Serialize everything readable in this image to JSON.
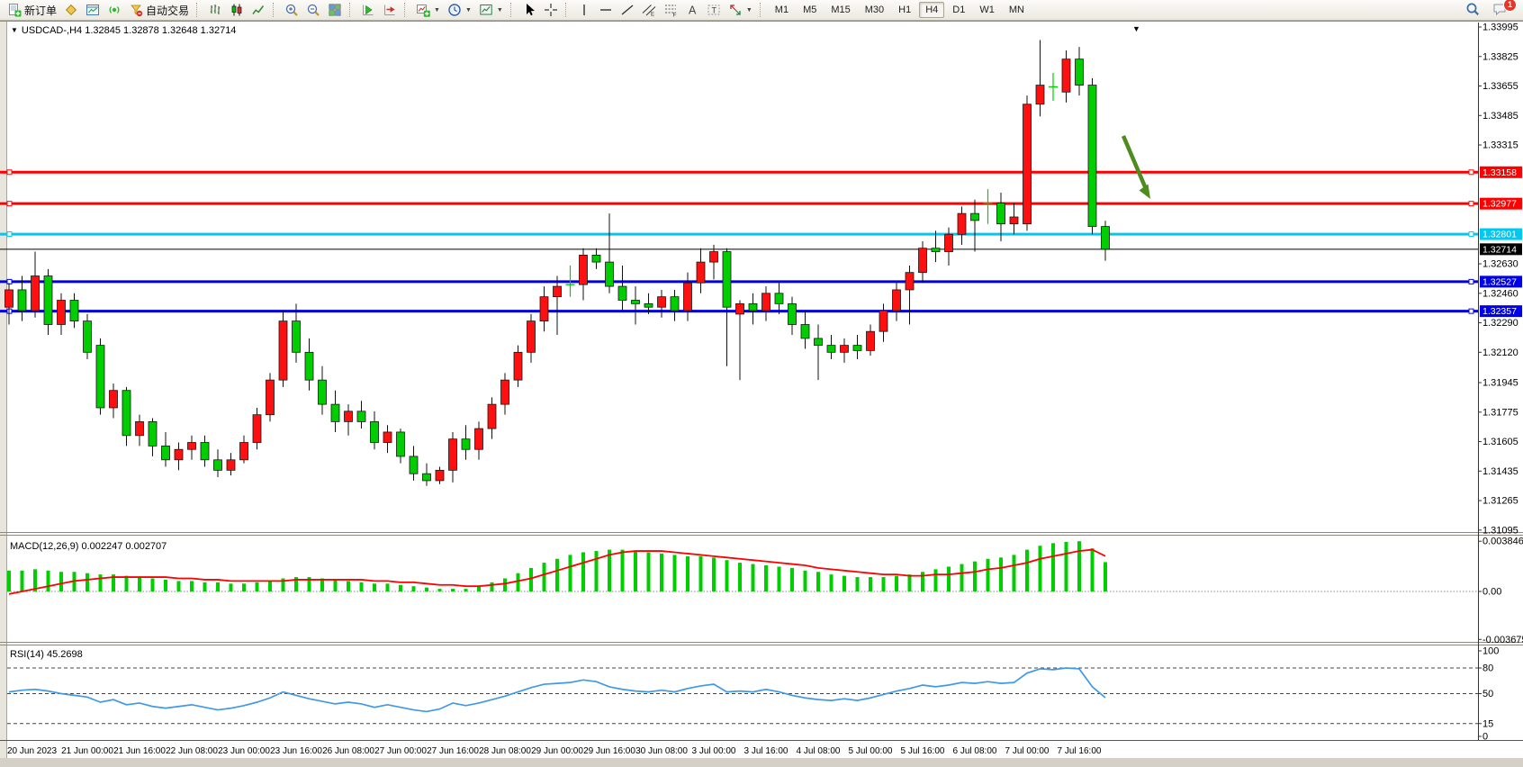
{
  "toolbar": {
    "groups": [
      [
        {
          "name": "new-order",
          "icon": "new-order-icon",
          "label": "新订单"
        },
        {
          "name": "favorites",
          "icon": "favorites-icon"
        },
        {
          "name": "data-window",
          "icon": "data-window-icon"
        },
        {
          "name": "signals",
          "icon": "signals-icon"
        },
        {
          "name": "auto-trading",
          "icon": "auto-trading-icon",
          "label": "自动交易"
        }
      ],
      [
        {
          "name": "bar-chart",
          "icon": "bar-chart-icon"
        },
        {
          "name": "candlestick-chart",
          "icon": "candlestick-icon"
        },
        {
          "name": "line-chart",
          "icon": "line-chart-icon"
        }
      ],
      [
        {
          "name": "zoom-in",
          "icon": "zoom-in-icon"
        },
        {
          "name": "zoom-out",
          "icon": "zoom-out-icon"
        },
        {
          "name": "tile-windows",
          "icon": "tile-windows-icon"
        }
      ],
      [
        {
          "name": "auto-scroll",
          "icon": "auto-scroll-icon"
        },
        {
          "name": "chart-shift",
          "icon": "chart-shift-icon"
        }
      ],
      [
        {
          "name": "indicators",
          "icon": "indicators-icon",
          "dropdown": true
        },
        {
          "name": "periods",
          "icon": "periods-icon",
          "dropdown": true
        },
        {
          "name": "templates",
          "icon": "templates-icon",
          "dropdown": true
        }
      ],
      [
        {
          "name": "cursor",
          "icon": "cursor-icon"
        },
        {
          "name": "crosshair",
          "icon": "crosshair-icon"
        }
      ],
      [
        {
          "name": "vertical-line",
          "icon": "vertical-line-icon"
        },
        {
          "name": "horizontal-line",
          "icon": "horizontal-line-icon"
        },
        {
          "name": "trendline",
          "icon": "trendline-icon"
        },
        {
          "name": "equidistant-channel",
          "icon": "channel-icon"
        },
        {
          "name": "fibonacci",
          "icon": "fibonacci-icon"
        },
        {
          "name": "text",
          "icon": "text-icon"
        },
        {
          "name": "text-label",
          "icon": "label-icon"
        },
        {
          "name": "arrows",
          "icon": "arrows-icon",
          "dropdown": true
        }
      ]
    ],
    "timeframes": {
      "items": [
        "M1",
        "M5",
        "M15",
        "M30",
        "H1",
        "H4",
        "D1",
        "W1",
        "MN"
      ],
      "active": "H4"
    },
    "right": [
      {
        "name": "search",
        "icon": "search-icon"
      },
      {
        "name": "notifications",
        "icon": "chat-icon",
        "badge": "1"
      }
    ]
  },
  "chart": {
    "title_text": "USDCAD-,H4 1.32845 1.32878 1.32648 1.32714",
    "symbol": "USDCAD-",
    "period": "H4",
    "ohlc_current": {
      "open": "1.32845",
      "high": "1.32878",
      "low": "1.32648",
      "close": "1.32714"
    },
    "bid_line": {
      "price": 1.32714,
      "label": "1.32714",
      "color": "#000000"
    },
    "price_lines": [
      {
        "price": 1.33158,
        "label": "1.33158",
        "color": "#fe0000",
        "width": 3
      },
      {
        "price": 1.32977,
        "label": "1.32977",
        "color": "#fe0000",
        "width": 3
      },
      {
        "price": 1.32801,
        "label": "1.32801",
        "color": "#00c8f0",
        "width": 3
      },
      {
        "price": 1.32527,
        "label": "1.32527",
        "color": "#0000e8",
        "width": 3
      },
      {
        "price": 1.32357,
        "label": "1.32357",
        "color": "#0000e8",
        "width": 3
      }
    ],
    "price_axis_ticks": [
      "1.33995",
      "1.33825",
      "1.33655",
      "1.33485",
      "1.33315",
      "1.32630",
      "1.32460",
      "1.32290",
      "1.32120",
      "1.31945",
      "1.31775",
      "1.31605",
      "1.31435",
      "1.31265",
      "1.31095"
    ],
    "time_axis_labels": [
      {
        "text": "20 Jun 2023",
        "i": 0
      },
      {
        "text": "21 Jun 00:00",
        "i": 6
      },
      {
        "text": "21 Jun 16:00",
        "i": 10
      },
      {
        "text": "22 Jun 08:00",
        "i": 14
      },
      {
        "text": "23 Jun 00:00",
        "i": 18
      },
      {
        "text": "23 Jun 16:00",
        "i": 22
      },
      {
        "text": "26 Jun 08:00",
        "i": 26
      },
      {
        "text": "27 Jun 00:00",
        "i": 30
      },
      {
        "text": "27 Jun 16:00",
        "i": 34
      },
      {
        "text": "28 Jun 08:00",
        "i": 38
      },
      {
        "text": "29 Jun 00:00",
        "i": 42
      },
      {
        "text": "29 Jun 16:00",
        "i": 46
      },
      {
        "text": "30 Jun 08:00",
        "i": 50
      },
      {
        "text": "3 Jul 00:00",
        "i": 54
      },
      {
        "text": "3 Jul 16:00",
        "i": 58
      },
      {
        "text": "4 Jul 08:00",
        "i": 62
      },
      {
        "text": "5 Jul 00:00",
        "i": 66
      },
      {
        "text": "5 Jul 16:00",
        "i": 70
      },
      {
        "text": "6 Jul 08:00",
        "i": 74
      },
      {
        "text": "7 Jul 00:00",
        "i": 78
      },
      {
        "text": "7 Jul 16:00",
        "i": 82
      }
    ],
    "arrow_annotation": {
      "from": [
        1248,
        128
      ],
      "to": [
        1278,
        198
      ],
      "color": "#4e8c1f"
    },
    "colors": {
      "up": "#fe1010",
      "down": "#00ce00",
      "wick": "#111111",
      "doji": "#00ce00"
    }
  },
  "chart_data": [
    {
      "type": "candlestick",
      "title": "USDCAD-,H4",
      "up_color": "#fe1010",
      "down_color": "#00ce00",
      "ylim": [
        1.31095,
        1.33995
      ],
      "ohlc": [
        [
          1.3238,
          1.3252,
          1.3228,
          1.3248
        ],
        [
          1.3248,
          1.3256,
          1.323,
          1.3236
        ],
        [
          1.3236,
          1.327,
          1.3232,
          1.3256
        ],
        [
          1.3256,
          1.326,
          1.3222,
          1.3228
        ],
        [
          1.3228,
          1.3246,
          1.3222,
          1.3242
        ],
        [
          1.3242,
          1.3246,
          1.3226,
          1.323
        ],
        [
          1.323,
          1.3234,
          1.3208,
          1.3212
        ],
        [
          1.3216,
          1.322,
          1.3176,
          1.318
        ],
        [
          1.318,
          1.3194,
          1.3174,
          1.319
        ],
        [
          1.319,
          1.3192,
          1.3158,
          1.3164
        ],
        [
          1.3164,
          1.3176,
          1.3158,
          1.3172
        ],
        [
          1.3172,
          1.3174,
          1.3152,
          1.3158
        ],
        [
          1.3158,
          1.3166,
          1.3146,
          1.315
        ],
        [
          1.315,
          1.316,
          1.3144,
          1.3156
        ],
        [
          1.3156,
          1.3164,
          1.315,
          1.316
        ],
        [
          1.316,
          1.3164,
          1.3146,
          1.315
        ],
        [
          1.315,
          1.3156,
          1.314,
          1.3144
        ],
        [
          1.3144,
          1.3154,
          1.3141,
          1.315
        ],
        [
          1.315,
          1.3164,
          1.3148,
          1.316
        ],
        [
          1.316,
          1.318,
          1.3156,
          1.3176
        ],
        [
          1.3176,
          1.32,
          1.3172,
          1.3196
        ],
        [
          1.3196,
          1.3236,
          1.3192,
          1.323
        ],
        [
          1.323,
          1.324,
          1.3206,
          1.3212
        ],
        [
          1.3212,
          1.322,
          1.319,
          1.3196
        ],
        [
          1.3196,
          1.3204,
          1.3176,
          1.3182
        ],
        [
          1.3182,
          1.319,
          1.3166,
          1.3172
        ],
        [
          1.3172,
          1.3182,
          1.3164,
          1.3178
        ],
        [
          1.3178,
          1.3184,
          1.3168,
          1.3172
        ],
        [
          1.3172,
          1.3178,
          1.3156,
          1.316
        ],
        [
          1.316,
          1.317,
          1.3154,
          1.3166
        ],
        [
          1.3166,
          1.3168,
          1.3148,
          1.3152
        ],
        [
          1.3152,
          1.3158,
          1.3138,
          1.3142
        ],
        [
          1.3142,
          1.3148,
          1.3135,
          1.3138
        ],
        [
          1.3138,
          1.3146,
          1.3136,
          1.3144
        ],
        [
          1.3144,
          1.3166,
          1.3137,
          1.3162
        ],
        [
          1.3162,
          1.317,
          1.315,
          1.3156
        ],
        [
          1.3156,
          1.3172,
          1.315,
          1.3168
        ],
        [
          1.3168,
          1.3186,
          1.3162,
          1.3182
        ],
        [
          1.3182,
          1.32,
          1.3176,
          1.3196
        ],
        [
          1.3196,
          1.3216,
          1.3192,
          1.3212
        ],
        [
          1.3212,
          1.3234,
          1.3206,
          1.323
        ],
        [
          1.323,
          1.325,
          1.3224,
          1.3244
        ],
        [
          1.3244,
          1.3256,
          1.3222,
          1.325
        ],
        [
          1.325,
          1.3262,
          1.3244,
          1.3251
        ],
        [
          1.3251,
          1.3272,
          1.3242,
          1.3268
        ],
        [
          1.3268,
          1.3272,
          1.326,
          1.3264
        ],
        [
          1.3264,
          1.3292,
          1.3246,
          1.325
        ],
        [
          1.325,
          1.3262,
          1.3236,
          1.3242
        ],
        [
          1.3242,
          1.325,
          1.3228,
          1.324
        ],
        [
          1.324,
          1.3246,
          1.3234,
          1.3238
        ],
        [
          1.3238,
          1.3248,
          1.3232,
          1.3244
        ],
        [
          1.3244,
          1.3248,
          1.323,
          1.3236
        ],
        [
          1.3236,
          1.3258,
          1.323,
          1.3252
        ],
        [
          1.3252,
          1.3272,
          1.3246,
          1.3264
        ],
        [
          1.3264,
          1.3274,
          1.3254,
          1.327
        ],
        [
          1.327,
          1.3272,
          1.3204,
          1.3238
        ],
        [
          1.3234,
          1.3242,
          1.3196,
          1.324
        ],
        [
          1.324,
          1.3246,
          1.3228,
          1.3236
        ],
        [
          1.3236,
          1.325,
          1.323,
          1.3246
        ],
        [
          1.3246,
          1.3252,
          1.3234,
          1.324
        ],
        [
          1.324,
          1.3244,
          1.3222,
          1.3228
        ],
        [
          1.3228,
          1.3236,
          1.3214,
          1.322
        ],
        [
          1.322,
          1.3228,
          1.3196,
          1.3216
        ],
        [
          1.3216,
          1.3222,
          1.3208,
          1.3212
        ],
        [
          1.3212,
          1.322,
          1.3206,
          1.3216
        ],
        [
          1.3216,
          1.3222,
          1.3208,
          1.3213
        ],
        [
          1.3213,
          1.3228,
          1.321,
          1.3224
        ],
        [
          1.3224,
          1.324,
          1.3218,
          1.3236
        ],
        [
          1.3236,
          1.3252,
          1.323,
          1.3248
        ],
        [
          1.3248,
          1.3262,
          1.3228,
          1.3258
        ],
        [
          1.3258,
          1.3276,
          1.3252,
          1.3272
        ],
        [
          1.3272,
          1.3282,
          1.3264,
          1.327
        ],
        [
          1.327,
          1.3284,
          1.3262,
          1.328
        ],
        [
          1.328,
          1.3296,
          1.3274,
          1.3292
        ],
        [
          1.3292,
          1.33,
          1.327,
          1.3288
        ],
        [
          1.3297,
          1.3306,
          1.3286,
          1.3298
        ],
        [
          1.3298,
          1.3304,
          1.3276,
          1.3286
        ],
        [
          1.3286,
          1.3298,
          1.328,
          1.329
        ],
        [
          1.3286,
          1.336,
          1.3282,
          1.3355
        ],
        [
          1.3355,
          1.3392,
          1.3348,
          1.3366
        ],
        [
          1.3366,
          1.3373,
          1.3357,
          1.3365
        ],
        [
          1.3362,
          1.3386,
          1.3356,
          1.3381
        ],
        [
          1.3381,
          1.3388,
          1.336,
          1.3366
        ],
        [
          1.3366,
          1.337,
          1.328,
          1.32845
        ],
        [
          1.32845,
          1.32878,
          1.32648,
          1.32714
        ]
      ]
    },
    {
      "type": "bar",
      "title": "MACD(12,26,9) histogram",
      "color": "#00ce00",
      "ylim": [
        -0.0042,
        0.0042
      ],
      "axis_ticks": [
        "0.003846",
        "0.00",
        "-0.003675"
      ],
      "axis_values": [
        0.003846,
        0,
        -0.003675
      ],
      "current_main": "0.002247",
      "current_signal": "0.002707",
      "values": [
        0.0016,
        0.0016,
        0.0017,
        0.0016,
        0.0015,
        0.0015,
        0.0014,
        0.0013,
        0.0013,
        0.0012,
        0.0011,
        0.001,
        0.0009,
        0.0008,
        0.0008,
        0.0007,
        0.0007,
        0.0006,
        0.0006,
        0.0007,
        0.0008,
        0.001,
        0.0011,
        0.0011,
        0.001,
        0.0009,
        0.0008,
        0.0007,
        0.0006,
        0.0006,
        0.0005,
        0.0004,
        0.0003,
        0.0002,
        0.0002,
        0.0002,
        0.0004,
        0.0007,
        0.001,
        0.0014,
        0.0018,
        0.0022,
        0.0025,
        0.0028,
        0.003,
        0.0031,
        0.0032,
        0.0032,
        0.0031,
        0.003,
        0.0029,
        0.0028,
        0.0027,
        0.0027,
        0.0026,
        0.0024,
        0.0022,
        0.0021,
        0.002,
        0.0019,
        0.0018,
        0.0016,
        0.0015,
        0.0013,
        0.0012,
        0.0011,
        0.0011,
        0.0011,
        0.0012,
        0.0013,
        0.0015,
        0.0017,
        0.0019,
        0.0021,
        0.0023,
        0.0025,
        0.0026,
        0.0028,
        0.0032,
        0.0035,
        0.0037,
        0.0038,
        0.00385,
        0.0033,
        0.002247
      ]
    },
    {
      "type": "line",
      "title": "MACD signal",
      "color": "#fe0000",
      "values": [
        -0.0002,
        0.0,
        0.0002,
        0.0004,
        0.0006,
        0.0008,
        0.0009,
        0.001,
        0.0011,
        0.0011,
        0.0011,
        0.0011,
        0.0011,
        0.001,
        0.001,
        0.0009,
        0.0009,
        0.0008,
        0.0008,
        0.0008,
        0.0008,
        0.0008,
        0.0009,
        0.0009,
        0.0009,
        0.0009,
        0.0009,
        0.0009,
        0.0008,
        0.0008,
        0.0007,
        0.0007,
        0.0006,
        0.0005,
        0.0005,
        0.0004,
        0.0004,
        0.0005,
        0.0006,
        0.0008,
        0.001,
        0.0013,
        0.0016,
        0.0019,
        0.0022,
        0.0025,
        0.0028,
        0.003,
        0.0031,
        0.0031,
        0.0031,
        0.003,
        0.0029,
        0.0028,
        0.0027,
        0.0026,
        0.0025,
        0.0024,
        0.0023,
        0.0022,
        0.0021,
        0.002,
        0.0018,
        0.0017,
        0.0016,
        0.0015,
        0.0014,
        0.0013,
        0.0013,
        0.0012,
        0.0012,
        0.0013,
        0.0013,
        0.0014,
        0.0015,
        0.0017,
        0.0018,
        0.002,
        0.0022,
        0.0025,
        0.0027,
        0.0029,
        0.0031,
        0.0032,
        0.002707
      ]
    },
    {
      "type": "line",
      "title": "RSI(14)",
      "color": "#3f99e8",
      "ylim": [
        0,
        100
      ],
      "levels": [
        80,
        50,
        15
      ],
      "axis_ticks": [
        "100",
        "80",
        "50",
        "15",
        "0"
      ],
      "axis_values": [
        100,
        80,
        50,
        15,
        0
      ],
      "current_value": "45.2698",
      "values": [
        52,
        54,
        55,
        53,
        50,
        48,
        46,
        40,
        43,
        37,
        39,
        35,
        33,
        35,
        37,
        34,
        31,
        33,
        36,
        40,
        45,
        52,
        48,
        44,
        41,
        38,
        40,
        38,
        34,
        37,
        34,
        31,
        29,
        32,
        39,
        36,
        39,
        43,
        47,
        52,
        57,
        61,
        62,
        63,
        66,
        64,
        58,
        55,
        53,
        52,
        54,
        52,
        56,
        59,
        61,
        52,
        53,
        52,
        55,
        52,
        48,
        45,
        43,
        42,
        44,
        42,
        45,
        49,
        53,
        56,
        60,
        58,
        60,
        63,
        62,
        64,
        62,
        63,
        74,
        79,
        78,
        80,
        79,
        58,
        45.2698
      ]
    }
  ],
  "indicators": {
    "macd_label_text": "MACD(12,26,9) 0.002247 0.002707",
    "rsi_label_text": "RSI(14) 45.2698"
  }
}
